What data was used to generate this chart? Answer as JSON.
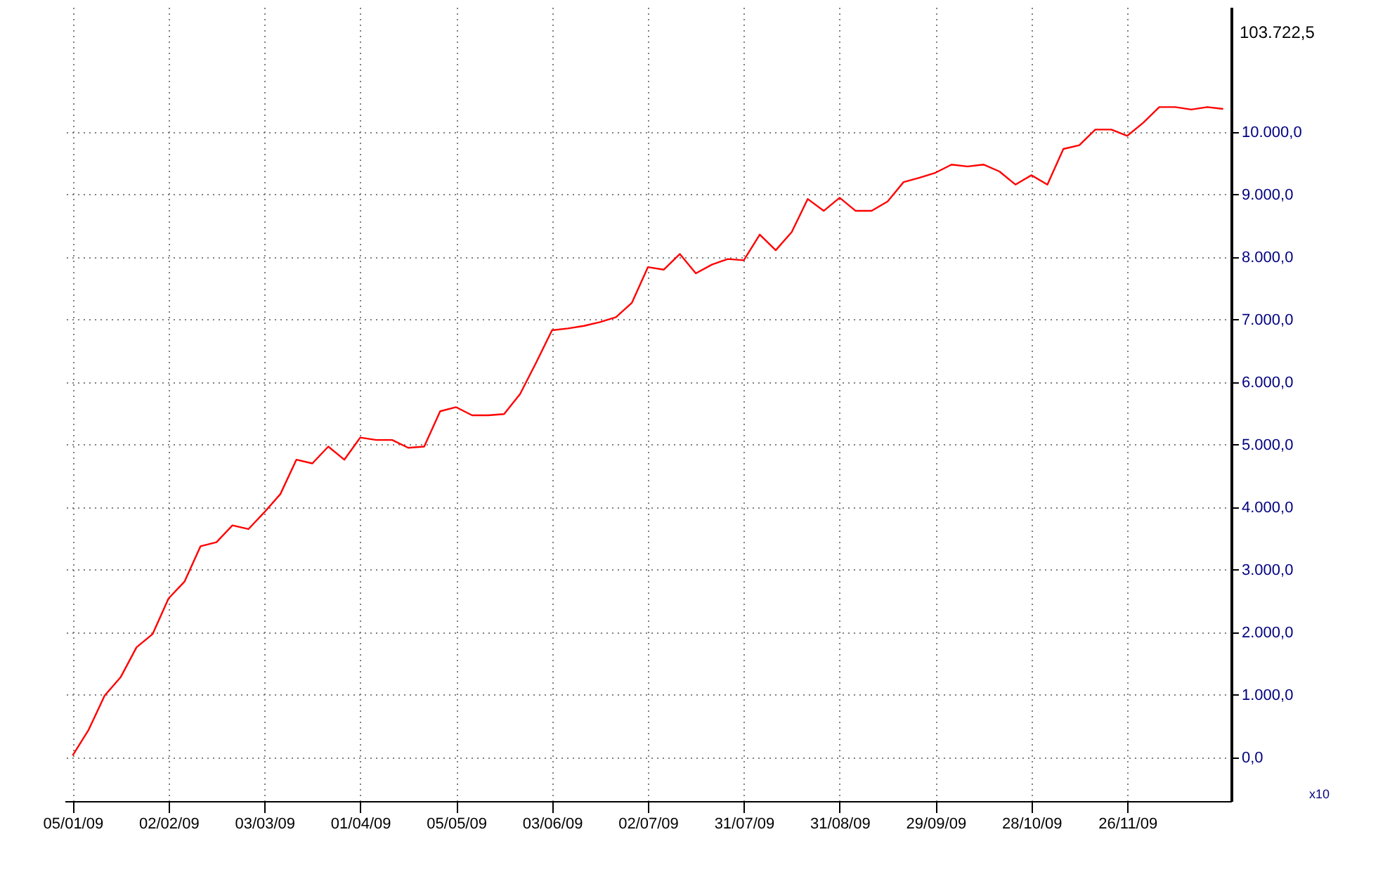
{
  "chart_data": {
    "type": "line",
    "categories": [
      "05/01/09",
      null,
      null,
      null,
      null,
      null,
      "02/02/09",
      null,
      null,
      null,
      null,
      null,
      "03/03/09",
      null,
      null,
      null,
      null,
      null,
      "01/04/09",
      null,
      null,
      null,
      null,
      null,
      "05/05/09",
      null,
      null,
      null,
      null,
      null,
      "03/06/09",
      null,
      null,
      null,
      null,
      null,
      "02/07/09",
      null,
      null,
      null,
      null,
      null,
      "31/07/09",
      null,
      null,
      null,
      null,
      null,
      "31/08/09",
      null,
      null,
      null,
      null,
      null,
      "29/09/09",
      null,
      null,
      null,
      null,
      null,
      "28/10/09",
      null,
      null,
      null,
      null,
      null,
      "26/11/09",
      null,
      null,
      null,
      null,
      null,
      null
    ],
    "series": [
      {
        "color": "#ff0000",
        "values": [
          30,
          440,
          985,
          1280,
          1760,
          1970,
          2540,
          2810,
          3375,
          3440,
          3710,
          3650,
          3920,
          4210,
          4760,
          4700,
          4970,
          4760,
          5115,
          5075,
          5075,
          4950,
          4970,
          5535,
          5600,
          5470,
          5470,
          5490,
          5810,
          6310,
          6830,
          6860,
          6900,
          6960,
          7040,
          7270,
          7840,
          7800,
          8050,
          7740,
          7880,
          7970,
          7950,
          8360,
          8110,
          8400,
          8930,
          8740,
          8950,
          8740,
          8740,
          8890,
          9200,
          9270,
          9350,
          9480,
          9450,
          9480,
          9370,
          9160,
          9310,
          9160,
          9730,
          9790,
          10040,
          10040,
          9940,
          10150,
          10400,
          10400,
          10360,
          10400,
          10370
        ]
      }
    ],
    "ylim": [
      -700,
      12000
    ],
    "yticks": [
      {
        "value": 0,
        "label": "0,0"
      },
      {
        "value": 1000,
        "label": "1.000,0"
      },
      {
        "value": 2000,
        "label": "2.000,0"
      },
      {
        "value": 3000,
        "label": "3.000,0"
      },
      {
        "value": 4000,
        "label": "4.000,0"
      },
      {
        "value": 5000,
        "label": "5.000,0"
      },
      {
        "value": 6000,
        "label": "6.000,0"
      },
      {
        "value": 7000,
        "label": "7.000,0"
      },
      {
        "value": 8000,
        "label": "8.000,0"
      },
      {
        "value": 9000,
        "label": "9.000,0"
      },
      {
        "value": 10000,
        "label": "10.000,0"
      }
    ],
    "annotations": [
      "103.722,5",
      "x10"
    ],
    "grid": true,
    "marker": "none",
    "line_style": "solid"
  }
}
